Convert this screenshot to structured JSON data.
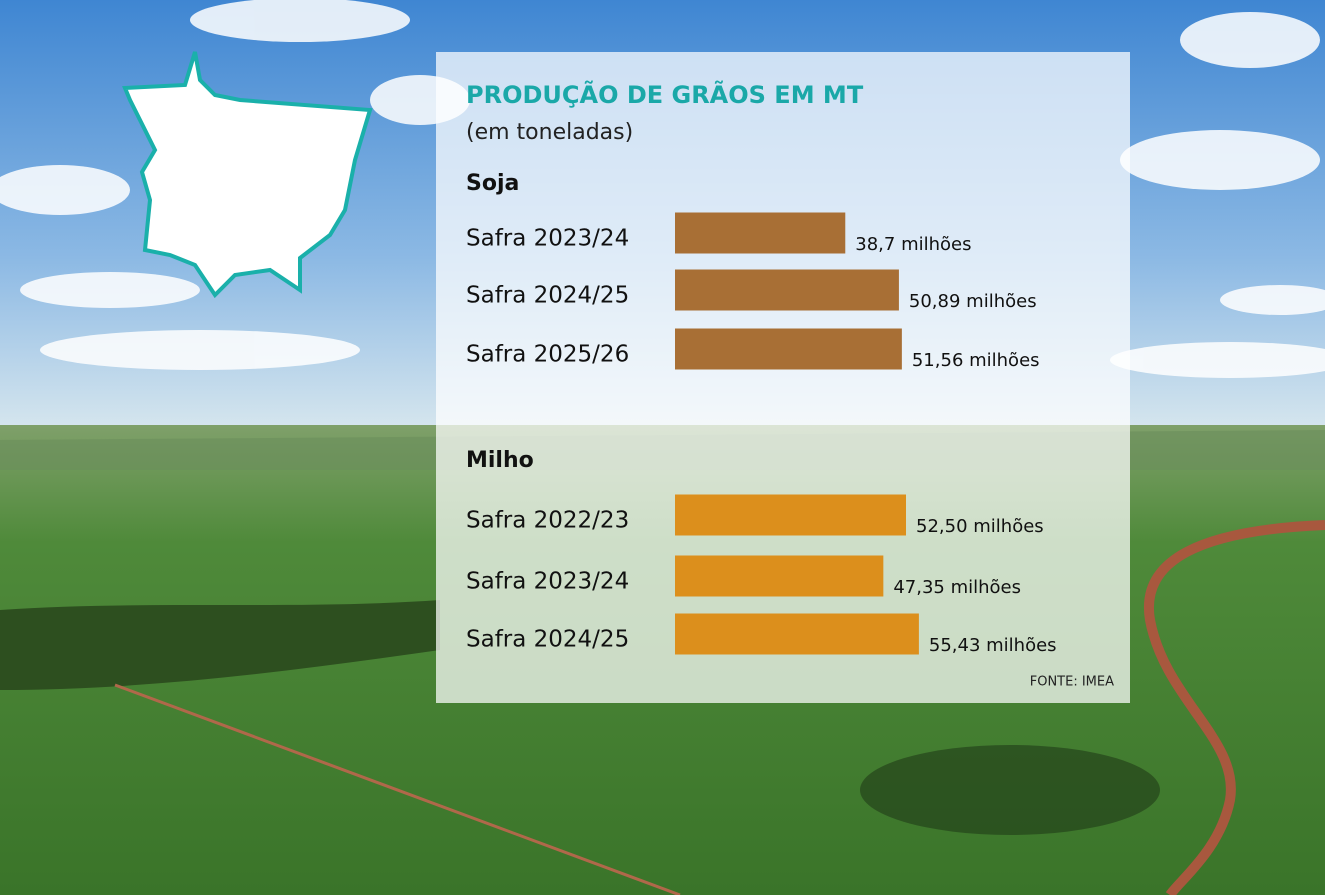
{
  "header": {
    "title": "PRODUÇÃO DE GRÃOS EM MT",
    "subtitle": "(em toneladas)"
  },
  "source": "FONTE: IMEA",
  "chart_data": [
    {
      "type": "bar",
      "orientation": "horizontal",
      "title": "Soja",
      "categories": [
        "Safra 2023/24",
        "Safra 2024/25",
        "Safra 2025/26"
      ],
      "values": [
        38.7,
        50.89,
        51.56
      ],
      "value_labels": [
        "38,7 milhões",
        "50,89 milhões",
        "51,56 milhões"
      ],
      "color": "#a86f35"
    },
    {
      "type": "bar",
      "orientation": "horizontal",
      "title": "Milho",
      "categories": [
        "Safra 2022/23",
        "Safra 2023/24",
        "Safra 2024/25"
      ],
      "values": [
        52.5,
        47.35,
        55.43
      ],
      "value_labels": [
        "52,50 milhões",
        "47,35 milhões",
        "55,43 milhões"
      ],
      "color": "#dc8f1c"
    }
  ]
}
